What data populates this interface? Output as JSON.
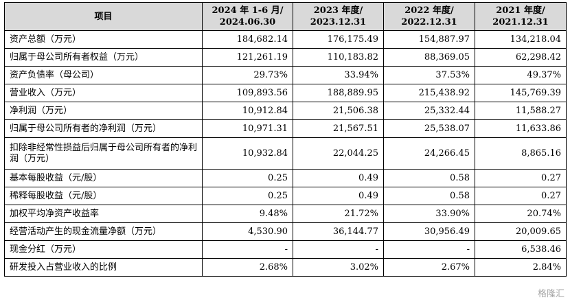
{
  "headers": [
    "项目",
    "2024 年 1-6 月/ 2024.06.30",
    "2023 年度/ 2023.12.31",
    "2022 年度/ 2022.12.31",
    "2021 年度/ 2021.12.31"
  ],
  "rows": [
    {
      "label": "资产总额（万元）",
      "values": [
        "184,682.14",
        "176,175.49",
        "154,887.97",
        "134,218.04"
      ]
    },
    {
      "label": "归属于母公司所有者权益（万元）",
      "values": [
        "121,261.19",
        "110,183.82",
        "88,369.05",
        "62,298.42"
      ]
    },
    {
      "label": "资产负债率（母公司）",
      "values": [
        "29.73%",
        "33.94%",
        "37.53%",
        "49.37%"
      ]
    },
    {
      "label": "营业收入（万元）",
      "values": [
        "109,893.56",
        "188,889.95",
        "215,438.92",
        "145,769.39"
      ]
    },
    {
      "label": "净利润（万元）",
      "values": [
        "10,912.84",
        "21,506.38",
        "25,332.44",
        "11,588.27"
      ]
    },
    {
      "label": "归属于母公司所有者的净利润（万元）",
      "values": [
        "10,971.31",
        "21,567.51",
        "25,538.07",
        "11,633.86"
      ]
    },
    {
      "label": "扣除非经常性损益后归属于母公司所有者的净利润（万元）",
      "values": [
        "10,932.84",
        "22,044.25",
        "24,266.45",
        "8,865.16"
      ]
    },
    {
      "label": "基本每股收益（元/股）",
      "values": [
        "0.25",
        "0.49",
        "0.58",
        "0.27"
      ]
    },
    {
      "label": "稀释每股收益（元/股）",
      "values": [
        "0.25",
        "0.49",
        "0.58",
        "0.27"
      ]
    },
    {
      "label": "加权平均净资产收益率",
      "values": [
        "9.48%",
        "21.72%",
        "33.90%",
        "20.74%"
      ]
    },
    {
      "label": "经营活动产生的现金流量净额（万元）",
      "values": [
        "4,530.90",
        "36,144.77",
        "30,956.49",
        "20,009.65"
      ]
    },
    {
      "label": "现金分红（万元）",
      "values": [
        "-",
        "-",
        "-",
        "6,538.46"
      ]
    },
    {
      "label": "研发投入占营业收入的比例",
      "values": [
        "2.68%",
        "3.02%",
        "2.67%",
        "2.84%"
      ]
    }
  ],
  "watermark": "格隆汇"
}
